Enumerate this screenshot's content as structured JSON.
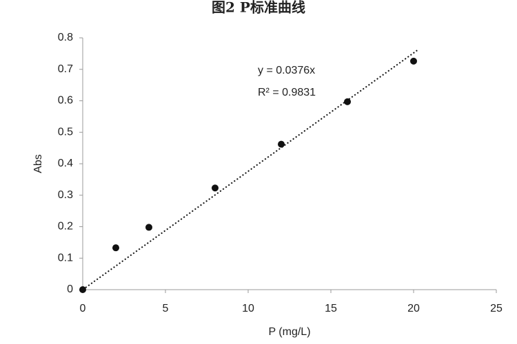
{
  "chart_data": {
    "type": "scatter",
    "title": "图2 P标准曲线",
    "x_label": "P (mg/L)",
    "y_label": "Abs",
    "x": [
      0,
      2,
      4,
      8,
      12,
      16,
      20
    ],
    "series": [
      {
        "color": "#111111",
        "values": [
          0,
          0.133,
          0.198,
          0.323,
          0.462,
          0.597,
          0.726
        ]
      }
    ],
    "xlim": [
      0,
      25
    ],
    "xticks": [
      0,
      5,
      10,
      15,
      20,
      25
    ],
    "ylim": [
      0,
      0.8
    ],
    "yticks": [
      0,
      0.1,
      0.2,
      0.3,
      0.4,
      0.5,
      0.6,
      0.7,
      0.8
    ],
    "grid": false,
    "trendline": {
      "slope": 0.0376,
      "equation": "y = 0.0376x",
      "r_squared": "R² = 0.9831"
    }
  }
}
